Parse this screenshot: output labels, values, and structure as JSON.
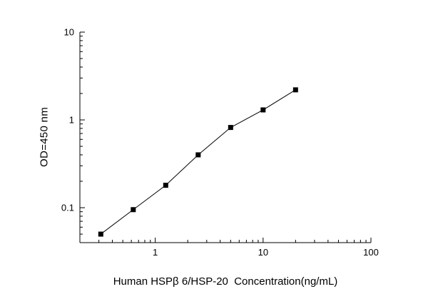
{
  "chart_data": {
    "type": "line",
    "title": "Human HSPβ 6/HSP-20  Concentration(ng/mL)",
    "xlabel": "Human HSPβ 6/HSP-20  Concentration(ng/mL)",
    "ylabel": "OD=450 nm",
    "x_scale": "log",
    "y_scale": "log",
    "xlim": [
      0.2,
      100
    ],
    "ylim": [
      0.04,
      10
    ],
    "x_tick_values": [
      1,
      10,
      100
    ],
    "x_tick_labels": [
      "1",
      "10",
      "100"
    ],
    "y_tick_values": [
      0.1,
      1,
      10
    ],
    "y_tick_labels": [
      "0.1",
      "1",
      "10"
    ],
    "grid": "off",
    "legend": "none",
    "marker": "filled-square",
    "line_color": "#000000",
    "marker_color": "#000000",
    "x": [
      0.3125,
      0.625,
      1.25,
      2.5,
      5,
      10,
      20
    ],
    "y": [
      0.05,
      0.095,
      0.18,
      0.4,
      0.82,
      1.3,
      2.2
    ]
  }
}
